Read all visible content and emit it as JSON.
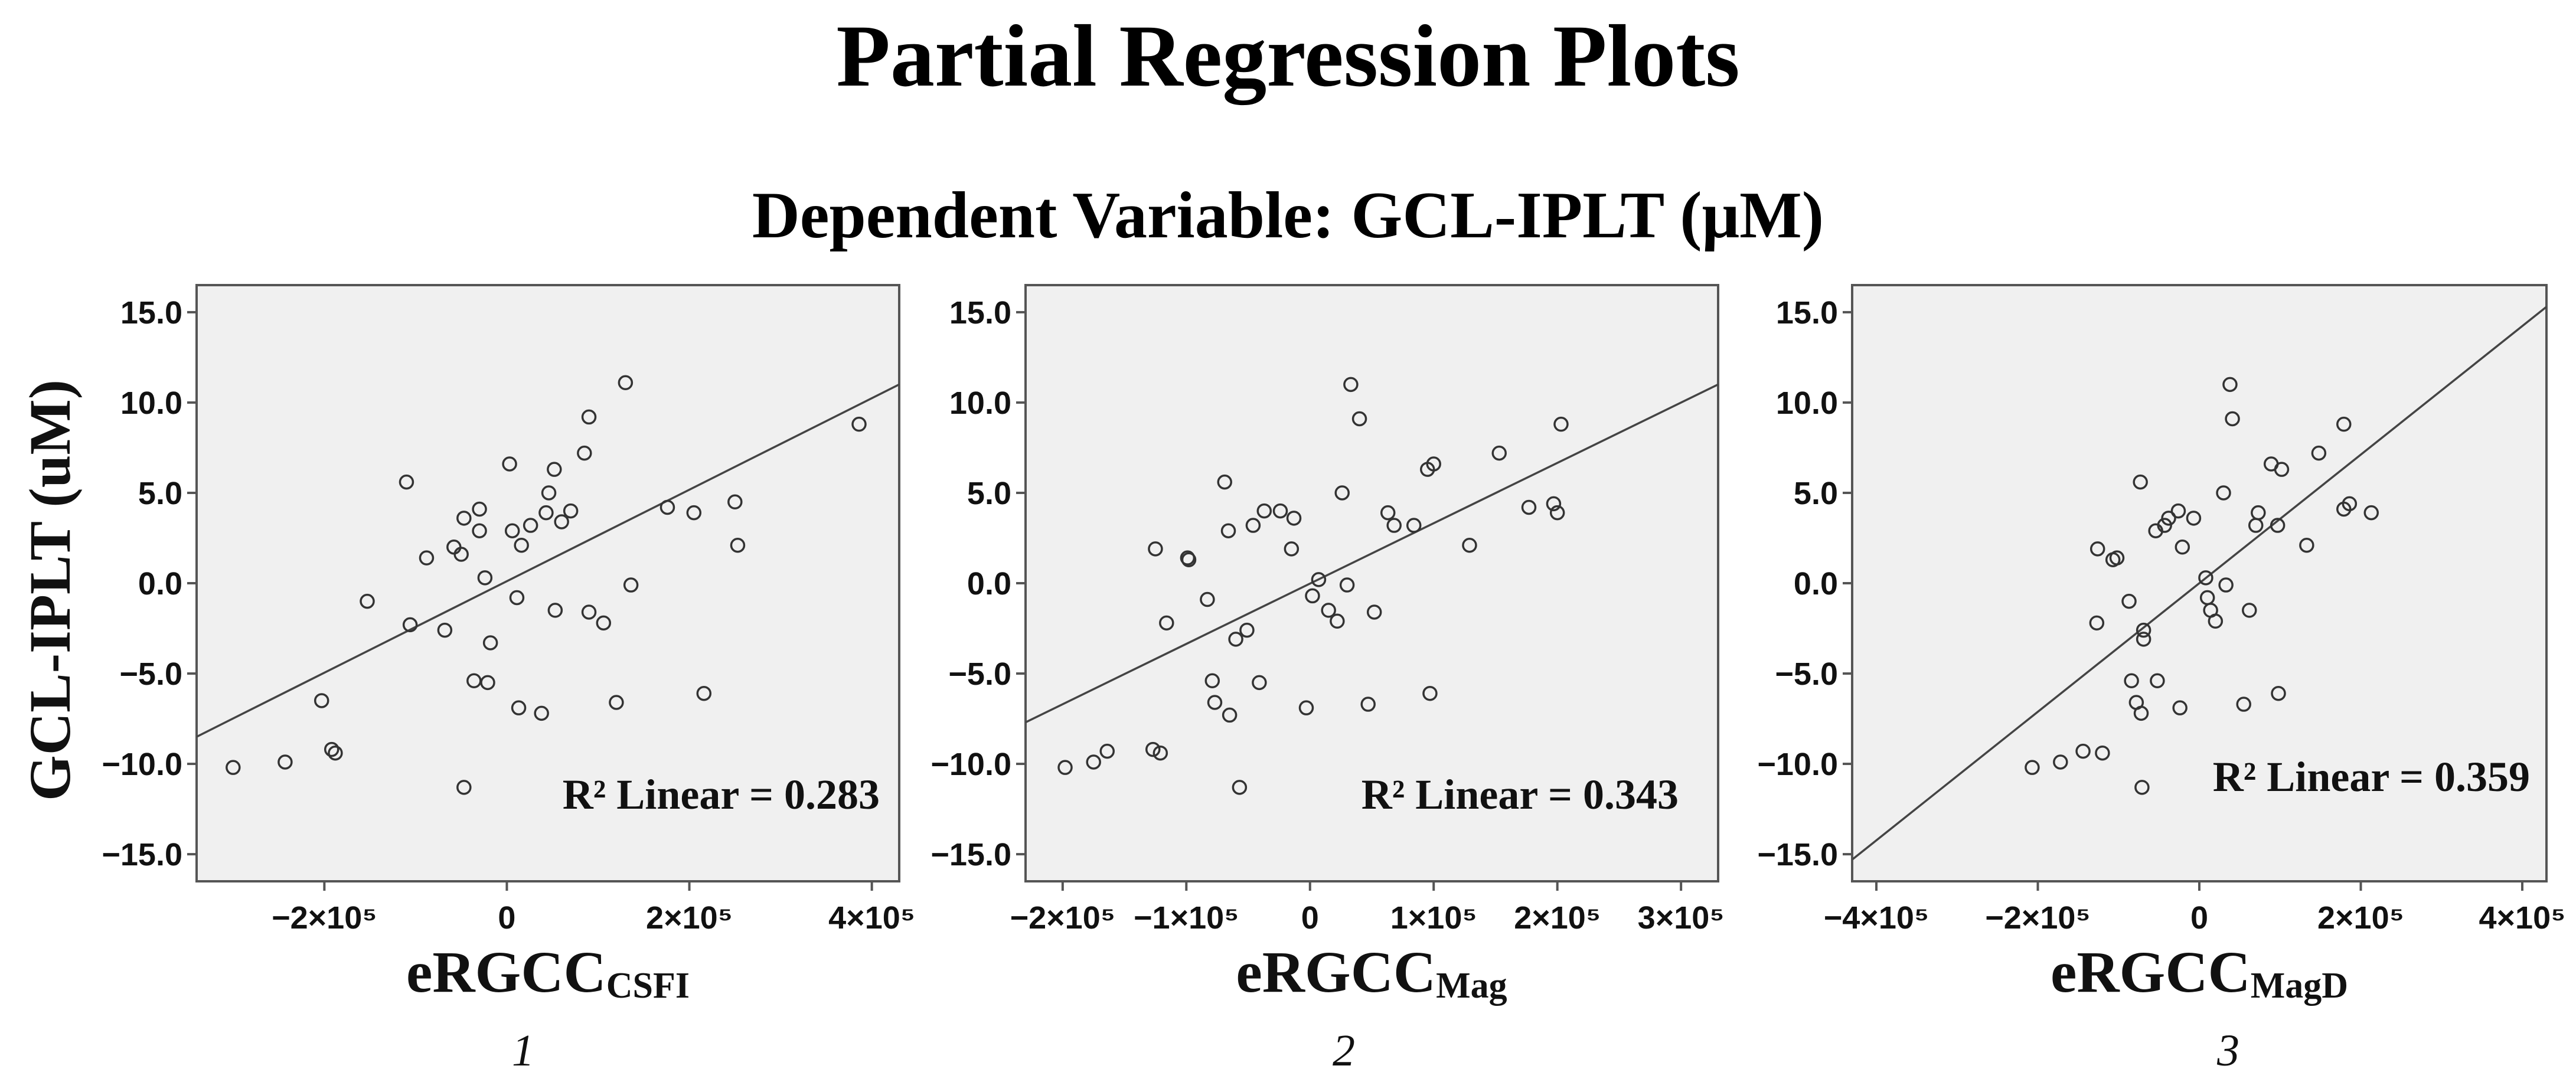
{
  "title": "Partial Regression Plots",
  "subtitle": "Dependent Variable: GCL-IPLT (μM)",
  "ylabel": "GCL-IPLT (uM)",
  "colors": {
    "panel_bg": "#f0f0f0",
    "frame": "#555555",
    "line": "#444444",
    "marker": "#333333"
  },
  "chart_data": [
    {
      "type": "scatter",
      "panel_number": "1",
      "xlabel_main": "eRGCC",
      "xlabel_sub": "CSFI",
      "r2_label": "R² Linear = 0.283",
      "xlim": [
        -340000,
        430000
      ],
      "ylim": [
        -16.5,
        16.5
      ],
      "x_ticks": [
        {
          "v": -200000,
          "label": "−2×10⁵"
        },
        {
          "v": 0,
          "label": "0"
        },
        {
          "v": 200000,
          "label": "2×10⁵"
        },
        {
          "v": 400000,
          "label": "4×10⁵"
        }
      ],
      "y_ticks": [
        {
          "v": 15,
          "label": "15.0"
        },
        {
          "v": 10,
          "label": "10.0"
        },
        {
          "v": 5,
          "label": "5.0"
        },
        {
          "v": 0,
          "label": "0.0"
        },
        {
          "v": -5,
          "label": "−5.0"
        },
        {
          "v": -10,
          "label": "−10.0"
        },
        {
          "v": -15,
          "label": "−15.0"
        }
      ],
      "fit_line": [
        [
          -340000,
          -8.5
        ],
        [
          430000,
          11.0
        ]
      ],
      "points": [
        [
          -300000,
          -10.2
        ],
        [
          -243000,
          -9.9
        ],
        [
          -203000,
          -6.5
        ],
        [
          -192000,
          -9.2
        ],
        [
          -188000,
          -9.4
        ],
        [
          -153000,
          -1.0
        ],
        [
          -110000,
          5.6
        ],
        [
          -106000,
          -2.3
        ],
        [
          -88000,
          1.4
        ],
        [
          -68000,
          -2.6
        ],
        [
          -58000,
          2.0
        ],
        [
          -50000,
          1.6
        ],
        [
          -47000,
          3.6
        ],
        [
          -47000,
          -11.3
        ],
        [
          -36000,
          -5.4
        ],
        [
          -30000,
          2.9
        ],
        [
          -30000,
          4.1
        ],
        [
          -24000,
          0.3
        ],
        [
          -21000,
          -5.5
        ],
        [
          -18000,
          -3.3
        ],
        [
          3000,
          6.6
        ],
        [
          6000,
          2.9
        ],
        [
          11000,
          -0.8
        ],
        [
          13000,
          -6.9
        ],
        [
          16000,
          2.1
        ],
        [
          26000,
          3.2
        ],
        [
          38000,
          -7.2
        ],
        [
          43000,
          3.9
        ],
        [
          46000,
          5.0
        ],
        [
          52000,
          6.3
        ],
        [
          53000,
          -1.5
        ],
        [
          60000,
          3.4
        ],
        [
          70000,
          4.0
        ],
        [
          85000,
          7.2
        ],
        [
          90000,
          9.2
        ],
        [
          90000,
          -1.6
        ],
        [
          106000,
          -2.2
        ],
        [
          120000,
          -6.6
        ],
        [
          130000,
          11.1
        ],
        [
          136000,
          -0.1
        ],
        [
          176000,
          4.2
        ],
        [
          205000,
          3.9
        ],
        [
          216000,
          -6.1
        ],
        [
          250000,
          4.5
        ],
        [
          253000,
          2.1
        ],
        [
          386000,
          8.8
        ]
      ]
    },
    {
      "type": "scatter",
      "panel_number": "2",
      "xlabel_main": "eRGCC",
      "xlabel_sub": "Mag",
      "r2_label": "R² Linear = 0.343",
      "xlim": [
        -230000,
        330000
      ],
      "ylim": [
        -16.5,
        16.5
      ],
      "x_ticks": [
        {
          "v": -200000,
          "label": "−2×10⁵"
        },
        {
          "v": -100000,
          "label": "−1×10⁵"
        },
        {
          "v": 0,
          "label": "0"
        },
        {
          "v": 100000,
          "label": "1×10⁵"
        },
        {
          "v": 200000,
          "label": "2×10⁵"
        },
        {
          "v": 300000,
          "label": "3×10⁵"
        }
      ],
      "y_ticks": [
        {
          "v": 15,
          "label": "15.0"
        },
        {
          "v": 10,
          "label": "10.0"
        },
        {
          "v": 5,
          "label": "5.0"
        },
        {
          "v": 0,
          "label": "0.0"
        },
        {
          "v": -5,
          "label": "−5.0"
        },
        {
          "v": -10,
          "label": "−10.0"
        },
        {
          "v": -15,
          "label": "−15.0"
        }
      ],
      "fit_line": [
        [
          -230000,
          -7.7
        ],
        [
          330000,
          11.0
        ]
      ],
      "points": [
        [
          -198000,
          -10.2
        ],
        [
          -175000,
          -9.9
        ],
        [
          -164000,
          -9.3
        ],
        [
          -127000,
          -9.2
        ],
        [
          -121000,
          -9.4
        ],
        [
          -125000,
          1.9
        ],
        [
          -116000,
          -2.2
        ],
        [
          -99000,
          1.4
        ],
        [
          -98000,
          1.3
        ],
        [
          -83000,
          -0.9
        ],
        [
          -79000,
          -5.4
        ],
        [
          -77000,
          -6.6
        ],
        [
          -69000,
          5.6
        ],
        [
          -66000,
          2.9
        ],
        [
          -65000,
          -7.3
        ],
        [
          -60000,
          -3.1
        ],
        [
          -57000,
          -11.3
        ],
        [
          -51000,
          -2.6
        ],
        [
          -46000,
          3.2
        ],
        [
          -41000,
          -5.5
        ],
        [
          -37000,
          4.0
        ],
        [
          -24000,
          4.0
        ],
        [
          -15000,
          1.9
        ],
        [
          -13000,
          3.6
        ],
        [
          -3000,
          -6.9
        ],
        [
          2000,
          -0.7
        ],
        [
          7000,
          0.2
        ],
        [
          15000,
          -1.5
        ],
        [
          22000,
          -2.1
        ],
        [
          26000,
          5.0
        ],
        [
          30000,
          -0.1
        ],
        [
          33000,
          11.0
        ],
        [
          40000,
          9.1
        ],
        [
          47000,
          -6.7
        ],
        [
          52000,
          -1.6
        ],
        [
          63000,
          3.9
        ],
        [
          68000,
          3.2
        ],
        [
          84000,
          3.2
        ],
        [
          95000,
          6.3
        ],
        [
          97000,
          -6.1
        ],
        [
          100000,
          6.6
        ],
        [
          129000,
          2.1
        ],
        [
          153000,
          7.2
        ],
        [
          177000,
          4.2
        ],
        [
          197000,
          4.4
        ],
        [
          200000,
          3.9
        ],
        [
          203000,
          8.8
        ]
      ]
    },
    {
      "type": "scatter",
      "panel_number": "3",
      "xlabel_main": "eRGCC",
      "xlabel_sub": "MagD",
      "r2_label": "R² Linear = 0.359",
      "xlim": [
        -430000,
        430000
      ],
      "ylim": [
        -16.5,
        16.5
      ],
      "x_ticks": [
        {
          "v": -400000,
          "label": "−4×10⁵"
        },
        {
          "v": -200000,
          "label": "−2×10⁵"
        },
        {
          "v": 0,
          "label": "0"
        },
        {
          "v": 200000,
          "label": "2×10⁵"
        },
        {
          "v": 400000,
          "label": "4×10⁵"
        }
      ],
      "y_ticks": [
        {
          "v": 15,
          "label": "15.0"
        },
        {
          "v": 10,
          "label": "10.0"
        },
        {
          "v": 5,
          "label": "5.0"
        },
        {
          "v": 0,
          "label": "0.0"
        },
        {
          "v": -5,
          "label": "−5.0"
        },
        {
          "v": -10,
          "label": "−10.0"
        },
        {
          "v": -15,
          "label": "−15.0"
        }
      ],
      "fit_line": [
        [
          -430000,
          -15.3
        ],
        [
          430000,
          15.3
        ]
      ],
      "points": [
        [
          -207000,
          -10.2
        ],
        [
          -172000,
          -9.9
        ],
        [
          -144000,
          -9.3
        ],
        [
          -120000,
          -9.4
        ],
        [
          -126000,
          1.9
        ],
        [
          -127000,
          -2.2
        ],
        [
          -107000,
          1.3
        ],
        [
          -102000,
          1.4
        ],
        [
          -87000,
          -1.0
        ],
        [
          -84000,
          -5.4
        ],
        [
          -78000,
          -6.6
        ],
        [
          -73000,
          5.6
        ],
        [
          -72000,
          -7.2
        ],
        [
          -71000,
          -11.3
        ],
        [
          -69000,
          -2.6
        ],
        [
          -69000,
          -3.1
        ],
        [
          -54000,
          2.9
        ],
        [
          -52000,
          -5.4
        ],
        [
          -43000,
          3.2
        ],
        [
          -38000,
          3.6
        ],
        [
          -26000,
          4.0
        ],
        [
          -24000,
          -6.9
        ],
        [
          -21000,
          2.0
        ],
        [
          -7000,
          3.6
        ],
        [
          8000,
          0.3
        ],
        [
          10000,
          -0.8
        ],
        [
          14000,
          -1.5
        ],
        [
          20000,
          -2.1
        ],
        [
          30000,
          5.0
        ],
        [
          33000,
          -0.1
        ],
        [
          38000,
          11.0
        ],
        [
          41000,
          9.1
        ],
        [
          55000,
          -6.7
        ],
        [
          62000,
          -1.5
        ],
        [
          70000,
          3.2
        ],
        [
          73000,
          3.9
        ],
        [
          89000,
          6.6
        ],
        [
          97000,
          3.2
        ],
        [
          98000,
          -6.1
        ],
        [
          102000,
          6.3
        ],
        [
          133000,
          2.1
        ],
        [
          148000,
          7.2
        ],
        [
          179000,
          8.8
        ],
        [
          179000,
          4.1
        ],
        [
          186000,
          4.4
        ],
        [
          213000,
          3.9
        ]
      ]
    }
  ]
}
